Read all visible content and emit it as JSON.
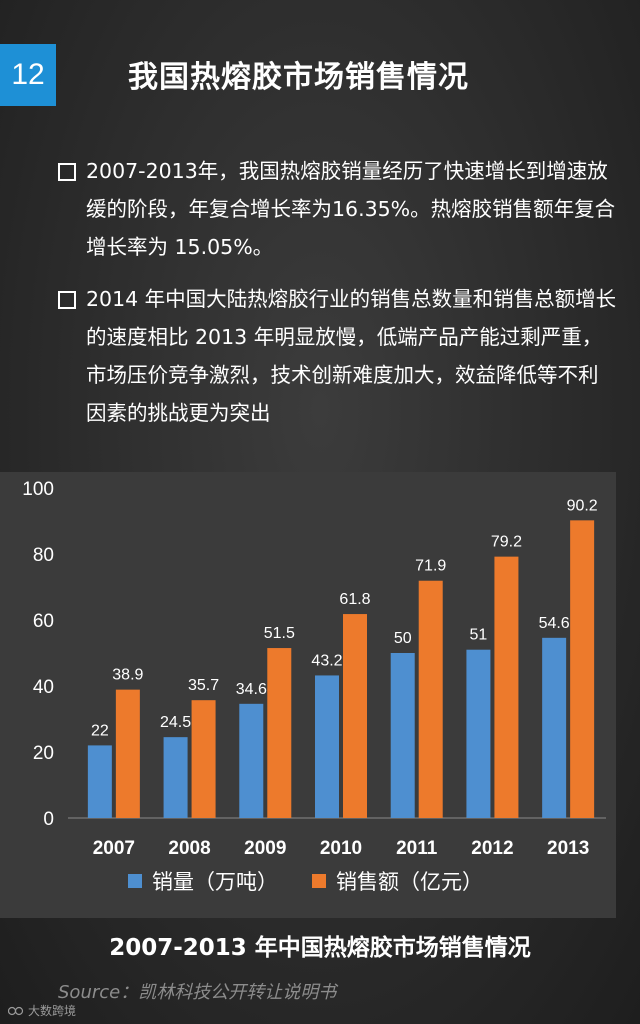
{
  "page_number": "12",
  "title": "我国热熔胶市场销售情况",
  "bullets": [
    "2007-2013年，我国热熔胶销量经历了快速增长到增速放缓的阶段，年复合增长率为16.35%。热熔胶销售额年复合增长率为 15.05%。",
    "2014 年中国大陆热熔胶行业的销售总数量和销售总额增长的速度相比 2013 年明显放慢，低端产品产能过剩严重，市场压价竞争激烈，技术创新难度加大，效益降低等不利因素的挑战更为突出"
  ],
  "chart_data": {
    "type": "bar",
    "categories": [
      "2007",
      "2008",
      "2009",
      "2010",
      "2011",
      "2012",
      "2013"
    ],
    "series": [
      {
        "name": "销量（万吨）",
        "values": [
          22,
          24.5,
          34.6,
          43.2,
          50,
          51,
          54.6
        ],
        "labels": [
          "22",
          "24.5",
          "34.6",
          "43.2",
          "50",
          "51",
          "54.6"
        ]
      },
      {
        "name": "销售额（亿元）",
        "values": [
          38.9,
          35.7,
          51.5,
          61.8,
          71.9,
          79.2,
          90.2
        ],
        "labels": [
          "38.9",
          "35.7",
          "51.5",
          "61.8",
          "71.9",
          "79.2",
          "90.2"
        ]
      }
    ],
    "ylim": [
      0,
      100
    ],
    "yticks": [
      "0",
      "20",
      "40",
      "60",
      "80",
      "100"
    ],
    "grid": false,
    "legend_position": "bottom",
    "colors": [
      "#4e8fd0",
      "#ed7a2c"
    ],
    "title": "2007-2013 年中国热熔胶市场销售情况"
  },
  "source": "Source：凯林科技公开转让说明书",
  "logo_text": "大数跨境"
}
